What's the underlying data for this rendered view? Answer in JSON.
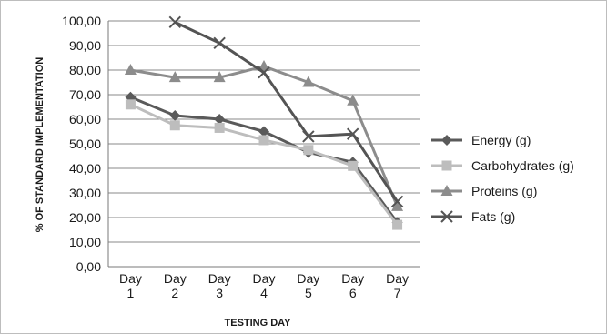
{
  "chart_data": {
    "type": "line",
    "xlabel": "TESTING DAY",
    "ylabel": "% OF STANDARD IMPLEMENTATION",
    "ylim": [
      0,
      100
    ],
    "y_step": 10,
    "y_tick_format": "comma-2-decimals",
    "grid": "horizontal",
    "legend_position": "right",
    "categories": [
      {
        "line1": "Day",
        "line2": "1"
      },
      {
        "line1": "Day",
        "line2": "2"
      },
      {
        "line1": "Day",
        "line2": "3"
      },
      {
        "line1": "Day",
        "line2": "4"
      },
      {
        "line1": "Day",
        "line2": "5"
      },
      {
        "line1": "Day",
        "line2": "6"
      },
      {
        "line1": "Day",
        "line2": "7"
      }
    ],
    "series": [
      {
        "name": "Energy (g)",
        "marker": "diamond",
        "color": "#5a5a5a",
        "values": [
          69.0,
          61.5,
          60.0,
          55.0,
          46.5,
          42.5,
          18.0
        ]
      },
      {
        "name": "Carbohydrates (g)",
        "marker": "square",
        "color": "#bdbdbd",
        "values": [
          66.0,
          57.5,
          56.5,
          51.5,
          47.5,
          41.0,
          17.0
        ]
      },
      {
        "name": "Proteins (g)",
        "marker": "triangle",
        "color": "#8c8c8c",
        "values": [
          80.0,
          77.0,
          77.0,
          81.5,
          75.0,
          67.5,
          24.5
        ]
      },
      {
        "name": "Fats (g)",
        "marker": "x",
        "color": "#545454",
        "values": [
          null,
          99.5,
          91.0,
          79.0,
          53.0,
          54.0,
          26.5
        ]
      }
    ]
  }
}
